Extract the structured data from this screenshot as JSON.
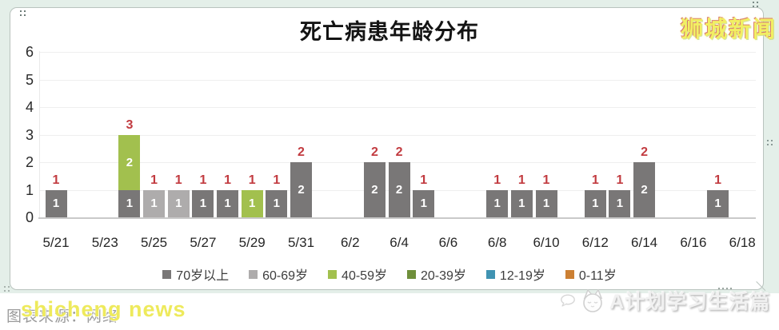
{
  "frame": {
    "background": "#e4efe9",
    "panel_background": "#ffffff",
    "panel_border": "#b9c3be"
  },
  "watermarks": {
    "top_right": "狮城新闻",
    "bottom_left_yellow": "shicheng news",
    "bottom_left_gray": "图表来源：网络",
    "bottom_right": "A计划学习生活篇"
  },
  "chart_data": {
    "type": "bar",
    "stacked": true,
    "title": "死亡病患年龄分布",
    "categories": [
      "5/21",
      "5/22",
      "5/23",
      "5/24",
      "5/25",
      "5/26",
      "5/27",
      "5/28",
      "5/29",
      "5/30",
      "5/31",
      "6/1",
      "6/2",
      "6/3",
      "6/4",
      "6/5",
      "6/6",
      "6/7",
      "6/8",
      "6/9",
      "6/10",
      "6/11",
      "6/12",
      "6/13",
      "6/14",
      "6/15",
      "6/16",
      "6/17",
      "6/18"
    ],
    "x_label_step": 2,
    "y_ticks": [
      0,
      1,
      2,
      3,
      4,
      5,
      6
    ],
    "ylim": [
      0,
      6
    ],
    "grid": true,
    "legend_position": "bottom",
    "value_label_color": "#c23b40",
    "bar_label_color": "#ffffff",
    "series": [
      {
        "name": "70岁以上",
        "color": "#797777",
        "values": [
          1,
          0,
          0,
          1,
          0,
          0,
          1,
          1,
          0,
          1,
          2,
          0,
          0,
          2,
          2,
          1,
          0,
          0,
          1,
          1,
          1,
          0,
          1,
          1,
          2,
          0,
          0,
          1,
          0
        ]
      },
      {
        "name": "60-69岁",
        "color": "#aeacac",
        "values": [
          0,
          0,
          0,
          0,
          1,
          1,
          0,
          0,
          0,
          0,
          0,
          0,
          0,
          0,
          0,
          0,
          0,
          0,
          0,
          0,
          0,
          0,
          0,
          0,
          0,
          0,
          0,
          0,
          0
        ]
      },
      {
        "name": "40-59岁",
        "color": "#a2c04e",
        "values": [
          0,
          0,
          0,
          2,
          0,
          0,
          0,
          0,
          1,
          0,
          0,
          0,
          0,
          0,
          0,
          0,
          0,
          0,
          0,
          0,
          0,
          0,
          0,
          0,
          0,
          0,
          0,
          0,
          0
        ]
      },
      {
        "name": "20-39岁",
        "color": "#6f8f3b",
        "values": [
          0,
          0,
          0,
          0,
          0,
          0,
          0,
          0,
          0,
          0,
          0,
          0,
          0,
          0,
          0,
          0,
          0,
          0,
          0,
          0,
          0,
          0,
          0,
          0,
          0,
          0,
          0,
          0,
          0
        ]
      },
      {
        "name": "12-19岁",
        "color": "#4093b2",
        "values": [
          0,
          0,
          0,
          0,
          0,
          0,
          0,
          0,
          0,
          0,
          0,
          0,
          0,
          0,
          0,
          0,
          0,
          0,
          0,
          0,
          0,
          0,
          0,
          0,
          0,
          0,
          0,
          0,
          0
        ]
      },
      {
        "name": "0-11岁",
        "color": "#cc8033",
        "values": [
          0,
          0,
          0,
          0,
          0,
          0,
          0,
          0,
          0,
          0,
          0,
          0,
          0,
          0,
          0,
          0,
          0,
          0,
          0,
          0,
          0,
          0,
          0,
          0,
          0,
          0,
          0,
          0,
          0
        ]
      }
    ],
    "totals": [
      1,
      0,
      0,
      3,
      1,
      1,
      1,
      1,
      1,
      1,
      2,
      0,
      0,
      2,
      2,
      1,
      0,
      0,
      1,
      1,
      1,
      0,
      1,
      1,
      2,
      0,
      0,
      1,
      0
    ]
  }
}
